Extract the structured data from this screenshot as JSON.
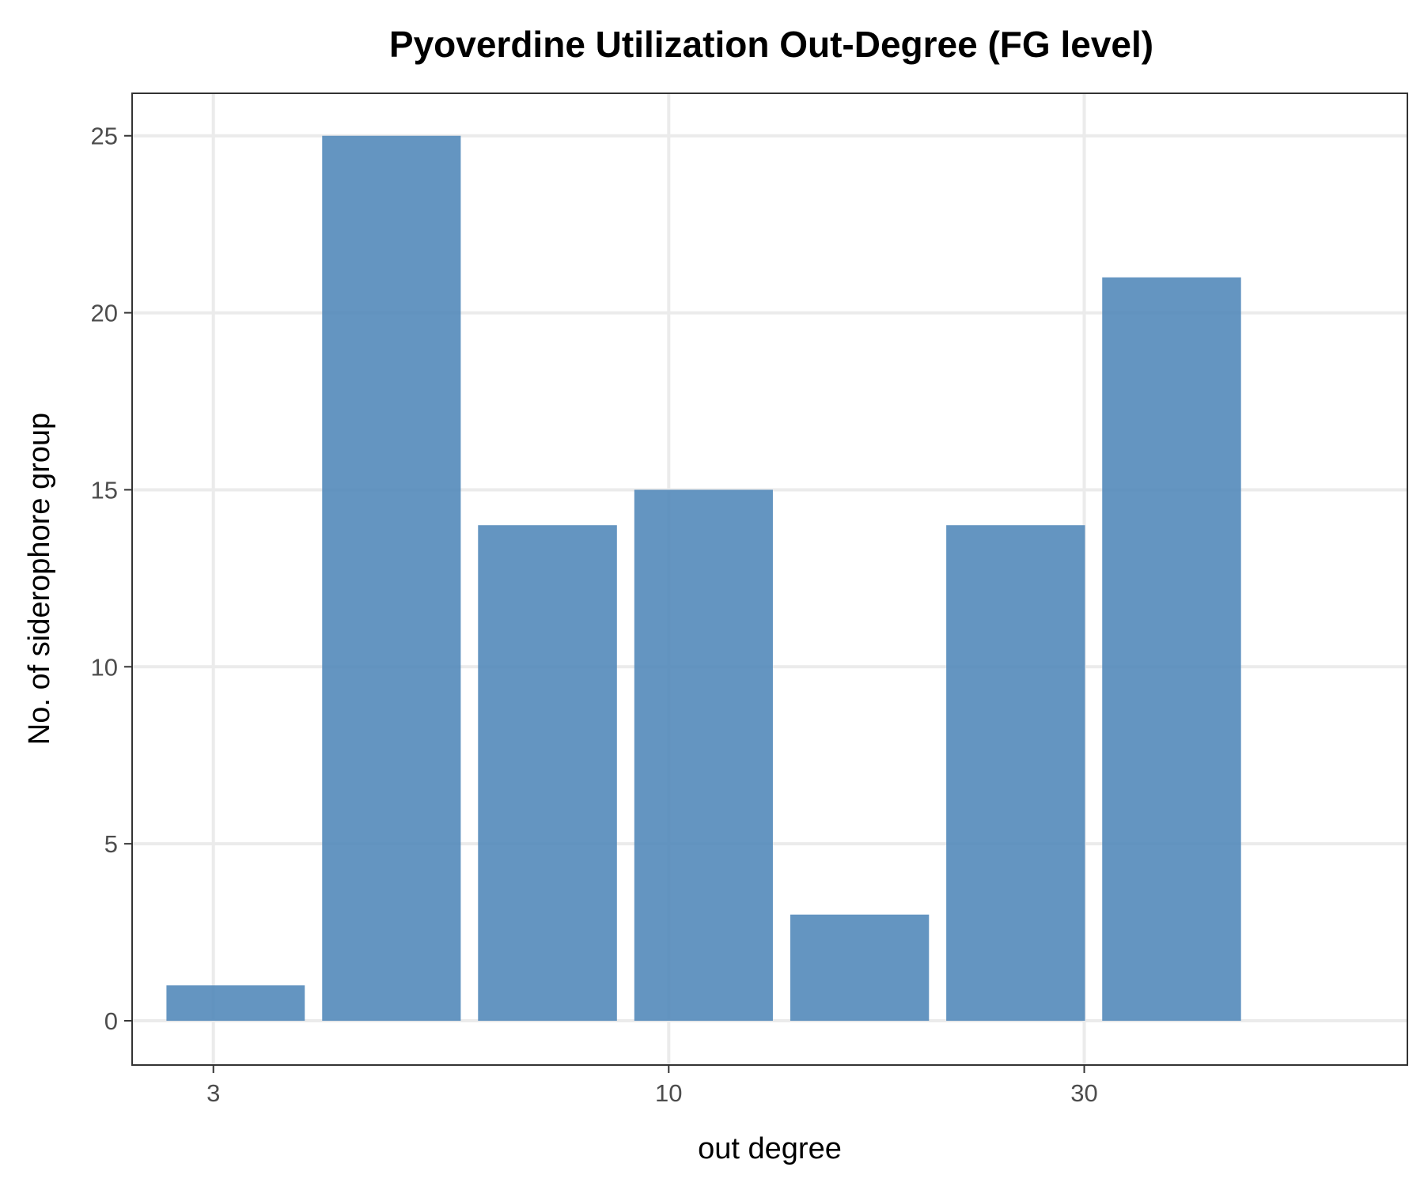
{
  "chart_data": {
    "type": "bar",
    "title": "Pyoverdine Utilization Out-Degree (FG level)",
    "xlabel": "out degree",
    "ylabel": "No. of siderophore group",
    "x_scale": "log10",
    "x_ticks": [
      3,
      10,
      30
    ],
    "x_tick_labels": [
      "3",
      "10",
      "30"
    ],
    "y_ticks": [
      0,
      5,
      10,
      15,
      20,
      25
    ],
    "y_tick_labels": [
      "0",
      "5",
      "10",
      "15",
      "20",
      "25"
    ],
    "ylim": [
      -1.25,
      26.2
    ],
    "xlim": [
      2.42,
      70.5
    ],
    "bins": [
      {
        "x_start": 2.65,
        "x_end": 3.82,
        "value": 1
      },
      {
        "x_start": 4.0,
        "x_end": 5.77,
        "value": 25
      },
      {
        "x_start": 6.04,
        "x_end": 8.72,
        "value": 14
      },
      {
        "x_start": 9.13,
        "x_end": 13.17,
        "value": 15
      },
      {
        "x_start": 13.79,
        "x_end": 19.9,
        "value": 3
      },
      {
        "x_start": 20.83,
        "x_end": 30.06,
        "value": 14
      },
      {
        "x_start": 31.46,
        "x_end": 45.41,
        "value": 21
      }
    ],
    "bar_color": "#4f86b8",
    "grid": true,
    "legend": "none"
  }
}
